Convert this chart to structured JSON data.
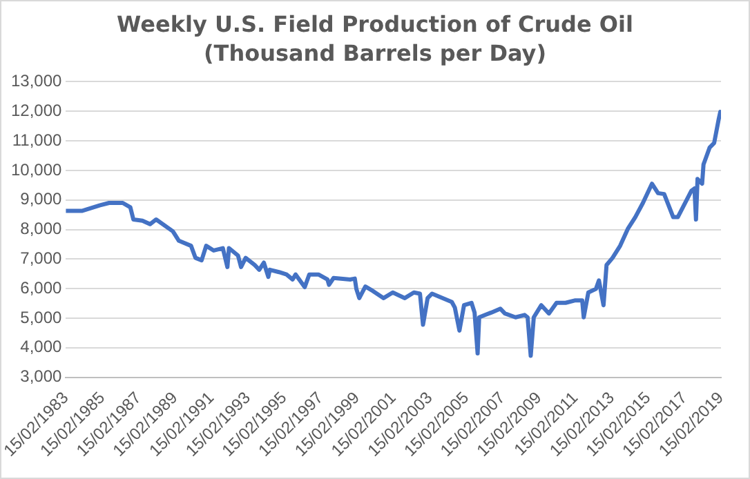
{
  "chart_data": {
    "type": "line",
    "title": "Weekly U.S. Field Production of Crude Oil (Thousand Barrels per Day)",
    "x": [
      "1983-02-15",
      "1984-01",
      "1985-01",
      "1985-07",
      "1986-04",
      "1986-09",
      "1986-11",
      "1987-05",
      "1987-10",
      "1988-02",
      "1989-01",
      "1989-05",
      "1990-01",
      "1990-04",
      "1990-08",
      "1990-11",
      "1991-04",
      "1991-10",
      "1992-01",
      "1992-02",
      "1992-08",
      "1992-10",
      "1993-01",
      "1993-07",
      "1993-10",
      "1994-01",
      "1994-04",
      "1994-05",
      "1994-11",
      "1995-04",
      "1995-08",
      "1995-10",
      "1996-04",
      "1996-07",
      "1997-01",
      "1997-07",
      "1997-08",
      "1997-11",
      "1998-10",
      "1999-01",
      "1999-02",
      "1999-04",
      "1999-08",
      "2000-01",
      "2000-08",
      "2001-02",
      "2001-10",
      "2002-04",
      "2002-08",
      "2002-10",
      "2003-01",
      "2003-04",
      "2003-11",
      "2004-05",
      "2004-07",
      "2004-10",
      "2005-01",
      "2005-06",
      "2005-08",
      "2005-10",
      "2005-11",
      "2006-03",
      "2006-07",
      "2007-01",
      "2007-04",
      "2007-11",
      "2008-05",
      "2008-07",
      "2008-09",
      "2008-11",
      "2009-04",
      "2009-09",
      "2010-02",
      "2010-08",
      "2011-02",
      "2011-07",
      "2011-08",
      "2011-11",
      "2012-04",
      "2012-06",
      "2012-09",
      "2012-11",
      "2013-03",
      "2013-08",
      "2014-01",
      "2014-06",
      "2014-11",
      "2015-05",
      "2015-09",
      "2016-01",
      "2016-07",
      "2016-10",
      "2017-07",
      "2017-09",
      "2017-10",
      "2017-11",
      "2018-02",
      "2018-03",
      "2018-07",
      "2018-10",
      "2019-01",
      "2019-02"
    ],
    "series": [
      {
        "color": "#4472c4",
        "values": [
          8630,
          8630,
          8820,
          8900,
          8900,
          8750,
          8340,
          8300,
          8180,
          8340,
          7940,
          7620,
          7450,
          7040,
          6960,
          7450,
          7290,
          7370,
          6730,
          7370,
          7120,
          6730,
          7040,
          6800,
          6640,
          6880,
          6400,
          6640,
          6560,
          6480,
          6310,
          6480,
          6050,
          6480,
          6480,
          6310,
          6130,
          6360,
          6310,
          6340,
          5990,
          5680,
          6070,
          5920,
          5680,
          5870,
          5680,
          5870,
          5830,
          4780,
          5680,
          5830,
          5680,
          5550,
          5360,
          4580,
          5440,
          5520,
          5190,
          3810,
          5030,
          5110,
          5190,
          5320,
          5160,
          5030,
          5110,
          5030,
          3730,
          5030,
          5440,
          5160,
          5520,
          5520,
          5600,
          5600,
          5030,
          5870,
          5990,
          6280,
          5440,
          6800,
          7040,
          7450,
          8020,
          8420,
          8900,
          9550,
          9230,
          9200,
          8420,
          8420,
          9310,
          9390,
          8340,
          9710,
          9550,
          10200,
          10770,
          10930,
          11740,
          11980
        ]
      }
    ],
    "xlim": [
      "1983-02-15",
      "2019-02-15"
    ],
    "xticks": [
      {
        "value": "1983-02-15",
        "label": "15/02/1983"
      },
      {
        "value": "1985-02-15",
        "label": "15/02/1985"
      },
      {
        "value": "1987-02-15",
        "label": "15/02/1987"
      },
      {
        "value": "1989-02-15",
        "label": "15/02/1989"
      },
      {
        "value": "1991-02-15",
        "label": "15/02/1991"
      },
      {
        "value": "1993-02-15",
        "label": "15/02/1993"
      },
      {
        "value": "1995-02-15",
        "label": "15/02/1995"
      },
      {
        "value": "1997-02-15",
        "label": "15/02/1997"
      },
      {
        "value": "1999-02-15",
        "label": "15/02/1999"
      },
      {
        "value": "2001-02-15",
        "label": "15/02/2001"
      },
      {
        "value": "2003-02-15",
        "label": "15/02/2003"
      },
      {
        "value": "2005-02-15",
        "label": "15/02/2005"
      },
      {
        "value": "2007-02-15",
        "label": "15/02/2007"
      },
      {
        "value": "2009-02-15",
        "label": "15/02/2009"
      },
      {
        "value": "2011-02-15",
        "label": "15/02/2011"
      },
      {
        "value": "2013-02-15",
        "label": "15/02/2013"
      },
      {
        "value": "2015-02-15",
        "label": "15/02/2015"
      },
      {
        "value": "2017-02-15",
        "label": "15/02/2017"
      },
      {
        "value": "2019-02-15",
        "label": "15/02/2019"
      }
    ],
    "ylim": [
      3000,
      13000
    ],
    "yticks": [
      {
        "value": 3000,
        "label": "3,000"
      },
      {
        "value": 4000,
        "label": "4,000"
      },
      {
        "value": 5000,
        "label": "5,000"
      },
      {
        "value": 6000,
        "label": "6,000"
      },
      {
        "value": 7000,
        "label": "7,000"
      },
      {
        "value": 8000,
        "label": "8,000"
      },
      {
        "value": 9000,
        "label": "9,000"
      },
      {
        "value": 10000,
        "label": "10,000"
      },
      {
        "value": 11000,
        "label": "11,000"
      },
      {
        "value": 12000,
        "label": "12,000"
      },
      {
        "value": 13000,
        "label": "13,000"
      }
    ],
    "grid": "y",
    "legend": false,
    "marker": "none",
    "line_style": "solid"
  }
}
